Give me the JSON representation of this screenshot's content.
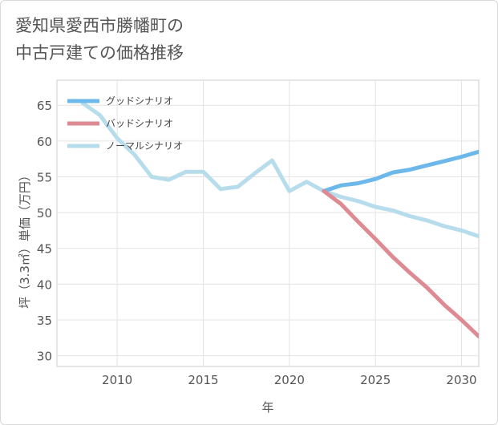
{
  "title": {
    "line1": "愛知県愛西市勝幡町の",
    "line2": "中古戸建ての価格推移"
  },
  "chart_data": {
    "type": "line",
    "xlabel": "年",
    "ylabel": "坪（3.3㎡）単価（万円）",
    "xlim": [
      2006.5,
      2031
    ],
    "ylim": [
      28.5,
      68.5
    ],
    "xticks": [
      2010,
      2015,
      2020,
      2025,
      2030
    ],
    "xtick_labels": [
      "2010",
      "2015",
      "2020",
      "2025",
      "2030"
    ],
    "yticks": [
      30,
      35,
      40,
      45,
      50,
      55,
      60,
      65
    ],
    "ytick_labels": [
      "30",
      "35",
      "40",
      "45",
      "50",
      "55",
      "60",
      "65"
    ],
    "grid": true,
    "legend_position": "top-left",
    "series": [
      {
        "name": "グッドシナリオ",
        "color": "#6cb8ea",
        "x": [
          2022,
          2023,
          2024,
          2025,
          2026,
          2027,
          2028,
          2029,
          2030,
          2031
        ],
        "y": [
          53.0,
          53.8,
          54.1,
          54.7,
          55.6,
          56.0,
          56.6,
          57.2,
          57.8,
          58.5
        ]
      },
      {
        "name": "バッドシナリオ",
        "color": "#dd8a92",
        "x": [
          2022,
          2023,
          2024,
          2025,
          2026,
          2027,
          2028,
          2029,
          2030,
          2031
        ],
        "y": [
          53.0,
          51.2,
          48.7,
          46.3,
          43.8,
          41.6,
          39.5,
          37.1,
          35.0,
          32.7
        ]
      },
      {
        "name": "ノーマルシナリオ",
        "color": "#b7ddec",
        "x": [
          2008,
          2009,
          2010,
          2011,
          2012,
          2013,
          2014,
          2015,
          2016,
          2017,
          2018,
          2019,
          2020,
          2021,
          2022,
          2023,
          2024,
          2025,
          2026,
          2027,
          2028,
          2029,
          2030,
          2031
        ],
        "y": [
          65.3,
          63.6,
          60.4,
          58.1,
          55.0,
          54.6,
          55.7,
          55.7,
          53.3,
          53.6,
          55.5,
          57.3,
          53.0,
          54.3,
          53.0,
          52.2,
          51.6,
          50.8,
          50.3,
          49.5,
          48.9,
          48.1,
          47.5,
          46.7
        ]
      }
    ]
  }
}
